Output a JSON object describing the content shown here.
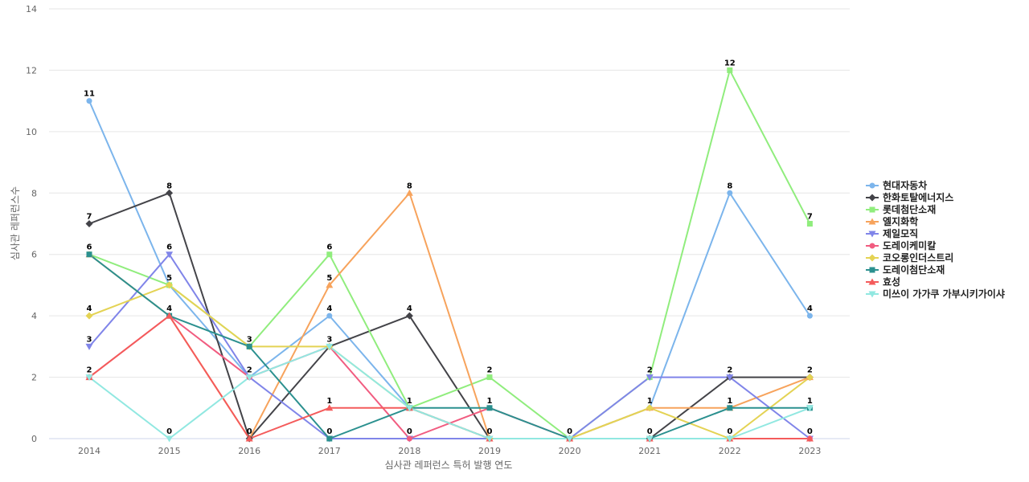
{
  "chart_data": {
    "type": "line",
    "title": "",
    "xlabel": "심사관 레퍼런스 특허 발행 연도",
    "ylabel": "심사관 레퍼런스수",
    "x": [
      "2014",
      "2015",
      "2016",
      "2017",
      "2018",
      "2019",
      "2020",
      "2021",
      "2022",
      "2023"
    ],
    "ylim": [
      0,
      14
    ],
    "yticks": [
      0,
      2,
      4,
      6,
      8,
      10,
      12,
      14
    ],
    "grid": true,
    "legend_position": "right",
    "series": [
      {
        "name": "현대자동차",
        "color": "#7cb5ec",
        "marker": "circle",
        "values": [
          11,
          5,
          2,
          4,
          1,
          0,
          0,
          1,
          8,
          4
        ],
        "labels": [
          true,
          false,
          false,
          true,
          false,
          false,
          false,
          false,
          true,
          true
        ]
      },
      {
        "name": "한화토탈에너지스",
        "color": "#434348",
        "marker": "diamond",
        "values": [
          7,
          8,
          0,
          3,
          4,
          0,
          0,
          0,
          2,
          2
        ],
        "labels": [
          true,
          true,
          true,
          false,
          true,
          false,
          false,
          false,
          false,
          false
        ]
      },
      {
        "name": "롯데첨단소재",
        "color": "#90ed7d",
        "marker": "square",
        "values": [
          6,
          5,
          3,
          6,
          1,
          2,
          0,
          2,
          12,
          7
        ],
        "labels": [
          false,
          false,
          false,
          true,
          false,
          true,
          false,
          false,
          true,
          true
        ]
      },
      {
        "name": "엘지화학",
        "color": "#f7a35c",
        "marker": "triangle",
        "values": [
          6,
          4,
          0,
          5,
          8,
          0,
          0,
          1,
          1,
          2
        ],
        "labels": [
          false,
          false,
          false,
          true,
          true,
          false,
          false,
          false,
          false,
          false
        ]
      },
      {
        "name": "제일모직",
        "color": "#8085e9",
        "marker": "triangle-down",
        "values": [
          3,
          6,
          2,
          0,
          0,
          0,
          0,
          2,
          2,
          0
        ],
        "labels": [
          true,
          true,
          false,
          false,
          false,
          false,
          false,
          true,
          true,
          false
        ]
      },
      {
        "name": "도레이케미칼",
        "color": "#f15c80",
        "marker": "circle",
        "values": [
          2,
          4,
          2,
          3,
          0,
          1,
          0,
          0,
          0,
          0
        ],
        "labels": [
          false,
          false,
          false,
          false,
          true,
          false,
          false,
          false,
          false,
          false
        ]
      },
      {
        "name": "코오롱인더스트리",
        "color": "#e4d354",
        "marker": "diamond",
        "values": [
          4,
          5,
          3,
          3,
          1,
          0,
          0,
          1,
          0,
          2
        ],
        "labels": [
          true,
          true,
          true,
          true,
          false,
          false,
          false,
          true,
          false,
          true
        ]
      },
      {
        "name": "도레이첨단소재",
        "color": "#2b908f",
        "marker": "square",
        "values": [
          6,
          4,
          3,
          0,
          1,
          1,
          0,
          0,
          1,
          1
        ],
        "labels": [
          true,
          true,
          false,
          true,
          false,
          true,
          false,
          false,
          true,
          true
        ]
      },
      {
        "name": "효성",
        "color": "#f45b5b",
        "marker": "triangle",
        "values": [
          2,
          4,
          0,
          1,
          1,
          0,
          0,
          0,
          0,
          0
        ],
        "labels": [
          false,
          false,
          false,
          true,
          true,
          false,
          false,
          false,
          false,
          true
        ]
      },
      {
        "name": "미쓰이 가가쿠 가부시키가이샤",
        "color": "#91e8e1",
        "marker": "triangle-down",
        "values": [
          2,
          0,
          2,
          3,
          1,
          0,
          0,
          0,
          0,
          1
        ],
        "labels": [
          true,
          true,
          true,
          false,
          false,
          true,
          true,
          true,
          true,
          false
        ]
      }
    ]
  }
}
